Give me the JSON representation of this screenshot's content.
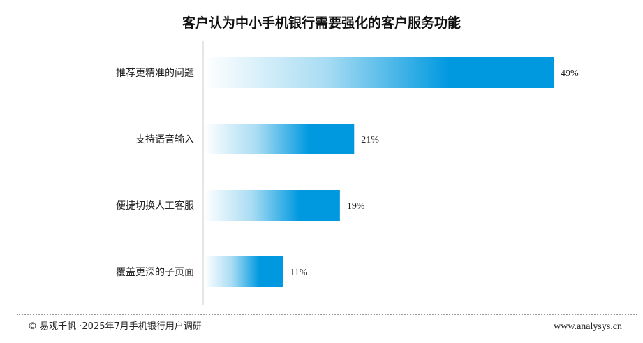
{
  "chart_data": {
    "type": "bar",
    "orientation": "horizontal",
    "title": "客户认为中小手机银行需要强化的客户服务功能",
    "categories": [
      "推荐更精准的问题",
      "支持语音输入",
      "便捷切换人工客服",
      "覆盖更深的子页面"
    ],
    "values": [
      49,
      21,
      19,
      11
    ],
    "value_labels": [
      "49%",
      "21%",
      "19%",
      "11%"
    ],
    "xlim": [
      0,
      50
    ],
    "grid": false,
    "colors": {
      "bar_start": "#ffffff",
      "bar_end": "#0099e0"
    }
  },
  "footer": {
    "source": "© 易观千帆 ·2025年7月手机银行用户调研",
    "website": "www.analysys.cn"
  }
}
